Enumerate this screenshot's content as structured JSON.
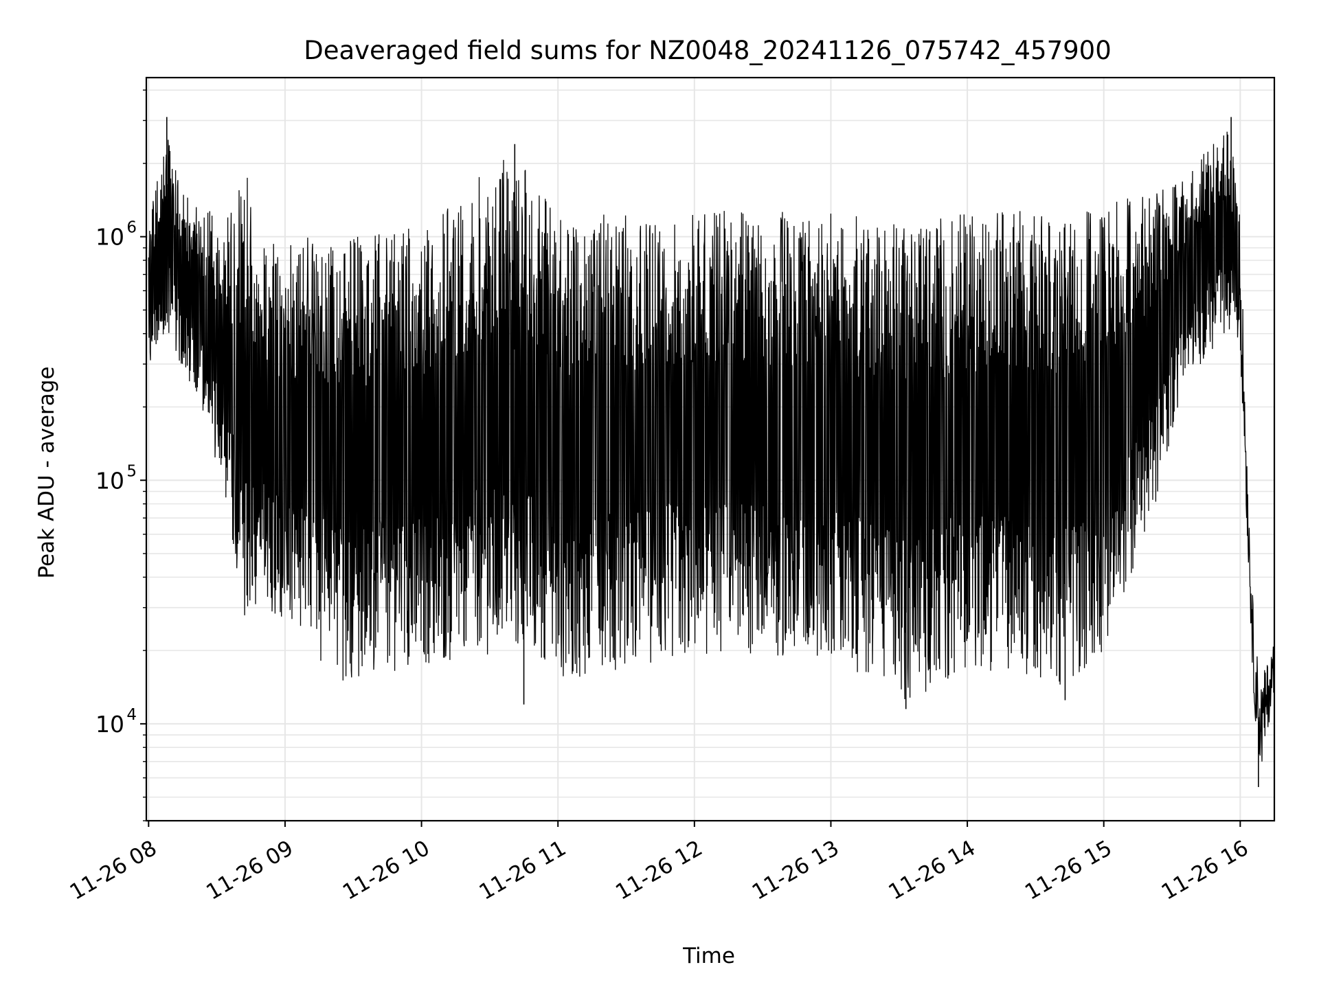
{
  "chart_data": {
    "type": "line",
    "title": "Deaveraged field sums for NZ0048_20241126_075742_457900",
    "xlabel": "Time",
    "ylabel": "Peak ADU - average",
    "yscale": "log",
    "ylim": [
      4000,
      4500000
    ],
    "xlim": [
      "2024-11-26 07:59",
      "2024-11-26 16:15"
    ],
    "grid": true,
    "line_color": "#000000",
    "grid_color": "#e6e6e6",
    "x_ticks": [
      {
        "t": "2024-11-26 08:00",
        "label": "11-26 08"
      },
      {
        "t": "2024-11-26 09:00",
        "label": "11-26 09"
      },
      {
        "t": "2024-11-26 10:00",
        "label": "11-26 10"
      },
      {
        "t": "2024-11-26 11:00",
        "label": "11-26 11"
      },
      {
        "t": "2024-11-26 12:00",
        "label": "11-26 12"
      },
      {
        "t": "2024-11-26 13:00",
        "label": "11-26 13"
      },
      {
        "t": "2024-11-26 14:00",
        "label": "11-26 14"
      },
      {
        "t": "2024-11-26 15:00",
        "label": "11-26 15"
      },
      {
        "t": "2024-11-26 16:00",
        "label": "11-26 16"
      }
    ],
    "y_ticks": [
      {
        "value": 10000,
        "label": "10",
        "exp": "4"
      },
      {
        "value": 100000,
        "label": "10",
        "exp": "5"
      },
      {
        "value": 1000000,
        "label": "10",
        "exp": "6"
      }
    ],
    "series": [
      {
        "envelope_points": [
          {
            "t": "2024-11-26 08:00",
            "low": 300000,
            "high": 1100000
          },
          {
            "t": "2024-11-26 08:08",
            "low": 400000,
            "high": 3000000
          },
          {
            "t": "2024-11-26 08:15",
            "low": 280000,
            "high": 1500000
          },
          {
            "t": "2024-11-26 08:25",
            "low": 180000,
            "high": 1300000
          },
          {
            "t": "2024-11-26 08:35",
            "low": 70000,
            "high": 1200000
          },
          {
            "t": "2024-11-26 08:43",
            "low": 25000,
            "high": 1900000
          },
          {
            "t": "2024-11-26 08:50",
            "low": 35000,
            "high": 1000000
          },
          {
            "t": "2024-11-26 09:00",
            "low": 22000,
            "high": 900000
          },
          {
            "t": "2024-11-26 09:10",
            "low": 20000,
            "high": 1100000
          },
          {
            "t": "2024-11-26 09:25",
            "low": 15000,
            "high": 1000000
          },
          {
            "t": "2024-11-26 10:00",
            "low": 17000,
            "high": 1100000
          },
          {
            "t": "2024-11-26 10:40",
            "low": 20000,
            "high": 2400000
          },
          {
            "t": "2024-11-26 11:00",
            "low": 15000,
            "high": 1200000
          },
          {
            "t": "2024-11-26 12:00",
            "low": 19000,
            "high": 1300000
          },
          {
            "t": "2024-11-26 13:00",
            "low": 18000,
            "high": 1250000
          },
          {
            "t": "2024-11-26 13:35",
            "low": 12000,
            "high": 1150000
          },
          {
            "t": "2024-11-26 14:00",
            "low": 17000,
            "high": 1250000
          },
          {
            "t": "2024-11-26 14:45",
            "low": 14000,
            "high": 1300000
          },
          {
            "t": "2024-11-26 15:00",
            "low": 20000,
            "high": 1400000
          },
          {
            "t": "2024-11-26 15:20",
            "low": 60000,
            "high": 1500000
          },
          {
            "t": "2024-11-26 15:35",
            "low": 250000,
            "high": 1700000
          },
          {
            "t": "2024-11-26 15:55",
            "low": 400000,
            "high": 3000000
          },
          {
            "t": "2024-11-26 16:00",
            "low": 350000,
            "high": 1200000
          },
          {
            "t": "2024-11-26 16:03",
            "low": 60000,
            "high": 130000
          },
          {
            "t": "2024-11-26 16:06",
            "low": 12000,
            "high": 25000
          },
          {
            "t": "2024-11-26 16:09",
            "low": 6000,
            "high": 15000
          },
          {
            "t": "2024-11-26 16:15",
            "low": 14000,
            "high": 22000
          }
        ],
        "spikes": [
          {
            "t": "2024-11-26 08:08",
            "value": 3100000
          },
          {
            "t": "2024-11-26 10:41",
            "value": 2400000
          },
          {
            "t": "2024-11-26 10:45",
            "value": 12000
          },
          {
            "t": "2024-11-26 13:33",
            "value": 11500
          },
          {
            "t": "2024-11-26 14:43",
            "value": 12500
          },
          {
            "t": "2024-11-26 15:56",
            "value": 3100000
          },
          {
            "t": "2024-11-26 16:08",
            "value": 5500
          }
        ]
      }
    ]
  }
}
